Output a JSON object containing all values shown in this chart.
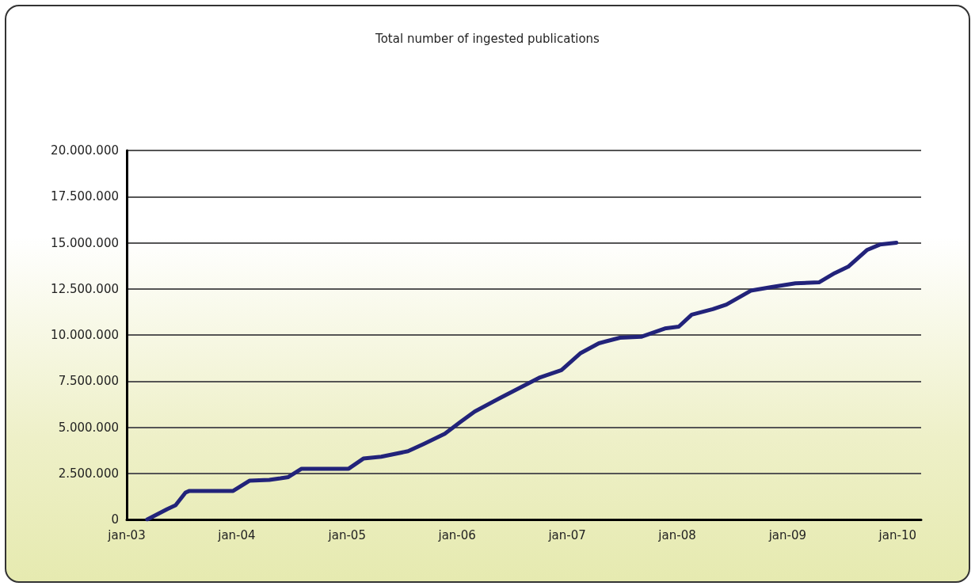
{
  "chart_data": {
    "type": "line",
    "title": "Total number of ingested publications",
    "x": [
      "2003-03-10",
      "2003-05-15",
      "2003-06-12",
      "2003-07-15",
      "2003-07-28",
      "2003-12-20",
      "2004-02-12",
      "2004-04-18",
      "2004-05-25",
      "2004-06-20",
      "2004-08-03",
      "2005-01-06",
      "2005-02-24",
      "2005-04-24",
      "2005-07-22",
      "2005-09-13",
      "2005-11-21",
      "2006-01-13",
      "2006-02-28",
      "2006-05-25",
      "2006-10-03",
      "2006-12-13",
      "2007-02-13",
      "2007-04-16",
      "2007-06-25",
      "2007-09-03",
      "2007-11-21",
      "2008-01-06",
      "2008-02-18",
      "2008-04-28",
      "2008-06-12",
      "2008-09-01",
      "2008-11-09",
      "2009-01-27",
      "2009-04-15",
      "2009-06-06",
      "2009-07-21",
      "2009-09-21",
      "2009-11-03",
      "2009-12-28"
    ],
    "series": [
      {
        "color": "#22237a",
        "values": [
          0,
          560000,
          770000,
          1460000,
          1550000,
          1550000,
          2100000,
          2150000,
          2230000,
          2300000,
          2750000,
          2750000,
          3300000,
          3400000,
          3700000,
          4100000,
          4650000,
          5300000,
          5850000,
          6600000,
          7700000,
          8100000,
          9000000,
          9550000,
          9850000,
          9900000,
          10350000,
          10450000,
          11100000,
          11400000,
          11650000,
          12400000,
          12600000,
          12800000,
          12850000,
          13350000,
          13700000,
          14600000,
          14900000,
          15000000
        ]
      }
    ],
    "xlim": [
      "2003-01-01",
      "2010-03-20"
    ],
    "xticks": [
      {
        "value": "2003-01-01",
        "label": "jan-03"
      },
      {
        "value": "2004-01-01",
        "label": "jan-04"
      },
      {
        "value": "2005-01-01",
        "label": "jan-05"
      },
      {
        "value": "2006-01-01",
        "label": "jan-06"
      },
      {
        "value": "2007-01-01",
        "label": "jan-07"
      },
      {
        "value": "2008-01-01",
        "label": "jan-08"
      },
      {
        "value": "2009-01-01",
        "label": "jan-09"
      },
      {
        "value": "2010-01-01",
        "label": "jan-10"
      }
    ],
    "ylim": [
      0,
      20000000
    ],
    "yticks": [
      0,
      {
        "value": 2500000,
        "label": "2.500.000"
      },
      {
        "value": 5000000,
        "label": "5.000.000"
      },
      {
        "value": 7500000,
        "label": "7.500.000"
      },
      {
        "value": 10000000,
        "label": "10.000.000"
      },
      {
        "value": 12500000,
        "label": "12.500.000"
      },
      {
        "value": 15000000,
        "label": "15.000.000"
      },
      {
        "value": 17500000,
        "label": "17.500.000"
      },
      {
        "value": 20000000,
        "label": "20.000.000"
      }
    ],
    "grid": "y",
    "marker": "none",
    "line_style": "solid"
  }
}
